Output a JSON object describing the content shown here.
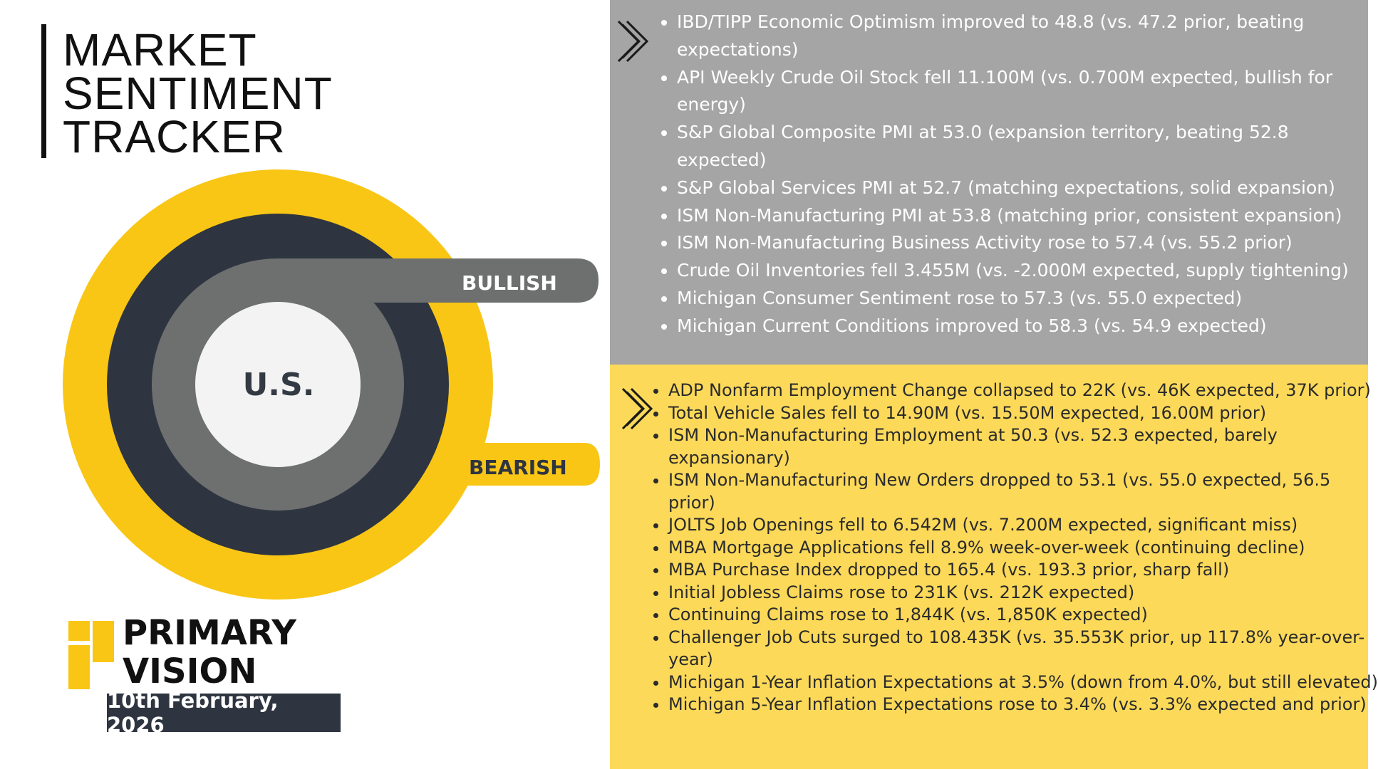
{
  "title": {
    "line1": "MARKET",
    "line2": "SENTIMENT",
    "line3": "TRACKER"
  },
  "gauge": {
    "bullish_label": "BULLISH",
    "bearish_label": "BEARISH",
    "center_label": "U.S."
  },
  "brand": {
    "line1": "PRIMARY",
    "line2": "VISION",
    "date": "10th February, 2026"
  },
  "bullish_items": [
    "IBD/TIPP Economic Optimism improved to 48.8 (vs. 47.2 prior, beating expectations)",
    "API Weekly Crude Oil Stock fell 11.100M (vs. 0.700M expected, bullish for energy)",
    "S&P Global Composite PMI at 53.0 (expansion territory, beating 52.8 expected)",
    "S&P Global Services PMI at 52.7 (matching expectations, solid expansion)",
    "ISM Non-Manufacturing PMI at 53.8 (matching prior, consistent expansion)",
    "ISM Non-Manufacturing Business Activity rose to 57.4 (vs. 55.2 prior)",
    "Crude Oil Inventories fell 3.455M (vs. -2.000M expected, supply tightening)",
    "Michigan Consumer Sentiment rose to 57.3 (vs. 55.0 expected)",
    "Michigan Current Conditions improved to 58.3 (vs. 54.9 expected)"
  ],
  "bearish_items": [
    "ADP Nonfarm Employment Change collapsed to 22K (vs. 46K expected, 37K prior)",
    "Total Vehicle Sales fell to 14.90M (vs. 15.50M expected, 16.00M prior)",
    "ISM Non-Manufacturing Employment at 50.3 (vs. 52.3 expected, barely expansionary)",
    "ISM Non-Manufacturing New Orders dropped to 53.1 (vs. 55.0 expected, 56.5 prior)",
    "JOLTS Job Openings fell to 6.542M (vs. 7.200M expected, significant miss)",
    "MBA Mortgage Applications fell 8.9% week-over-week (continuing decline)",
    "MBA Purchase Index dropped to 165.4 (vs. 193.3 prior, sharp fall)",
    "Initial Jobless Claims rose to 231K (vs. 212K expected)",
    "Continuing Claims rose to 1,844K (vs. 1,850K expected)",
    "Challenger Job Cuts surged to 108.435K (vs. 35.553K prior, up 117.8% year-over-year)",
    "Michigan 1-Year Inflation Expectations at 3.5% (down from 4.0%, but still elevated)",
    "Michigan 5-Year Inflation Expectations rose to 3.4% (vs. 3.3% expected and prior)"
  ],
  "colors": {
    "yellow": "#f9c615",
    "dark": "#2e3540",
    "grey_ring": "#6e6f6f",
    "bull_panel": "#a5a5a5",
    "bear_panel": "#fcd959"
  },
  "icons": {
    "chevron": "double-chevron-right-icon",
    "logo": "primary-vision-logo-icon"
  }
}
